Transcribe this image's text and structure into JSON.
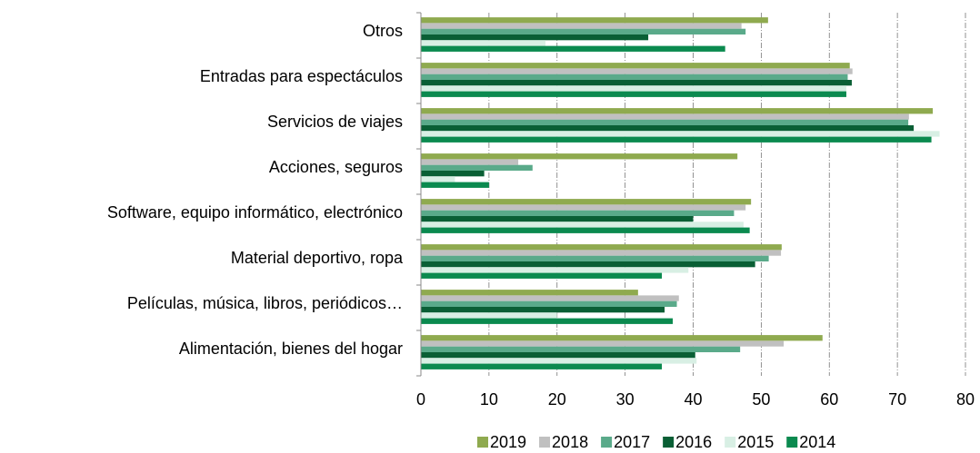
{
  "chart_data": {
    "type": "bar",
    "orientation": "horizontal",
    "categories": [
      "Otros",
      "Entradas para espectáculos",
      "Servicios de viajes",
      "Acciones, seguros",
      "Software, equipo informático, electrónico",
      "Material deportivo, ropa",
      "Películas, música, libros, periódicos…",
      "Alimentación, bienes del hogar"
    ],
    "series": [
      {
        "name": "2019",
        "color": "#8faa4f",
        "values": [
          51,
          63,
          75.2,
          46.5,
          48.5,
          53,
          31.9,
          59
        ]
      },
      {
        "name": "2018",
        "color": "#c0c0c0",
        "values": [
          47.1,
          63.4,
          71.7,
          14.3,
          47.7,
          52.9,
          37.9,
          53.3
        ]
      },
      {
        "name": "2017",
        "color": "#5aaa8a",
        "values": [
          47.7,
          62.7,
          71.6,
          16.4,
          46,
          51.1,
          37.6,
          46.9
        ]
      },
      {
        "name": "2016",
        "color": "#0a5f35",
        "values": [
          33.4,
          63.3,
          72.4,
          9.3,
          40,
          49.1,
          35.8,
          40.3
        ]
      },
      {
        "name": "2015",
        "color": "#d8efe4",
        "values": [
          18.3,
          62.5,
          76.2,
          5,
          47.4,
          39.3,
          20,
          40.5
        ]
      },
      {
        "name": "2014",
        "color": "#0b8a4f",
        "values": [
          44.7,
          62.5,
          75,
          10,
          48.3,
          35.4,
          37,
          35.4
        ]
      }
    ],
    "xlim": [
      0,
      80
    ],
    "xticks": [
      0,
      10,
      20,
      30,
      40,
      50,
      60,
      70,
      80
    ],
    "grid": true,
    "legend": "bottom"
  }
}
